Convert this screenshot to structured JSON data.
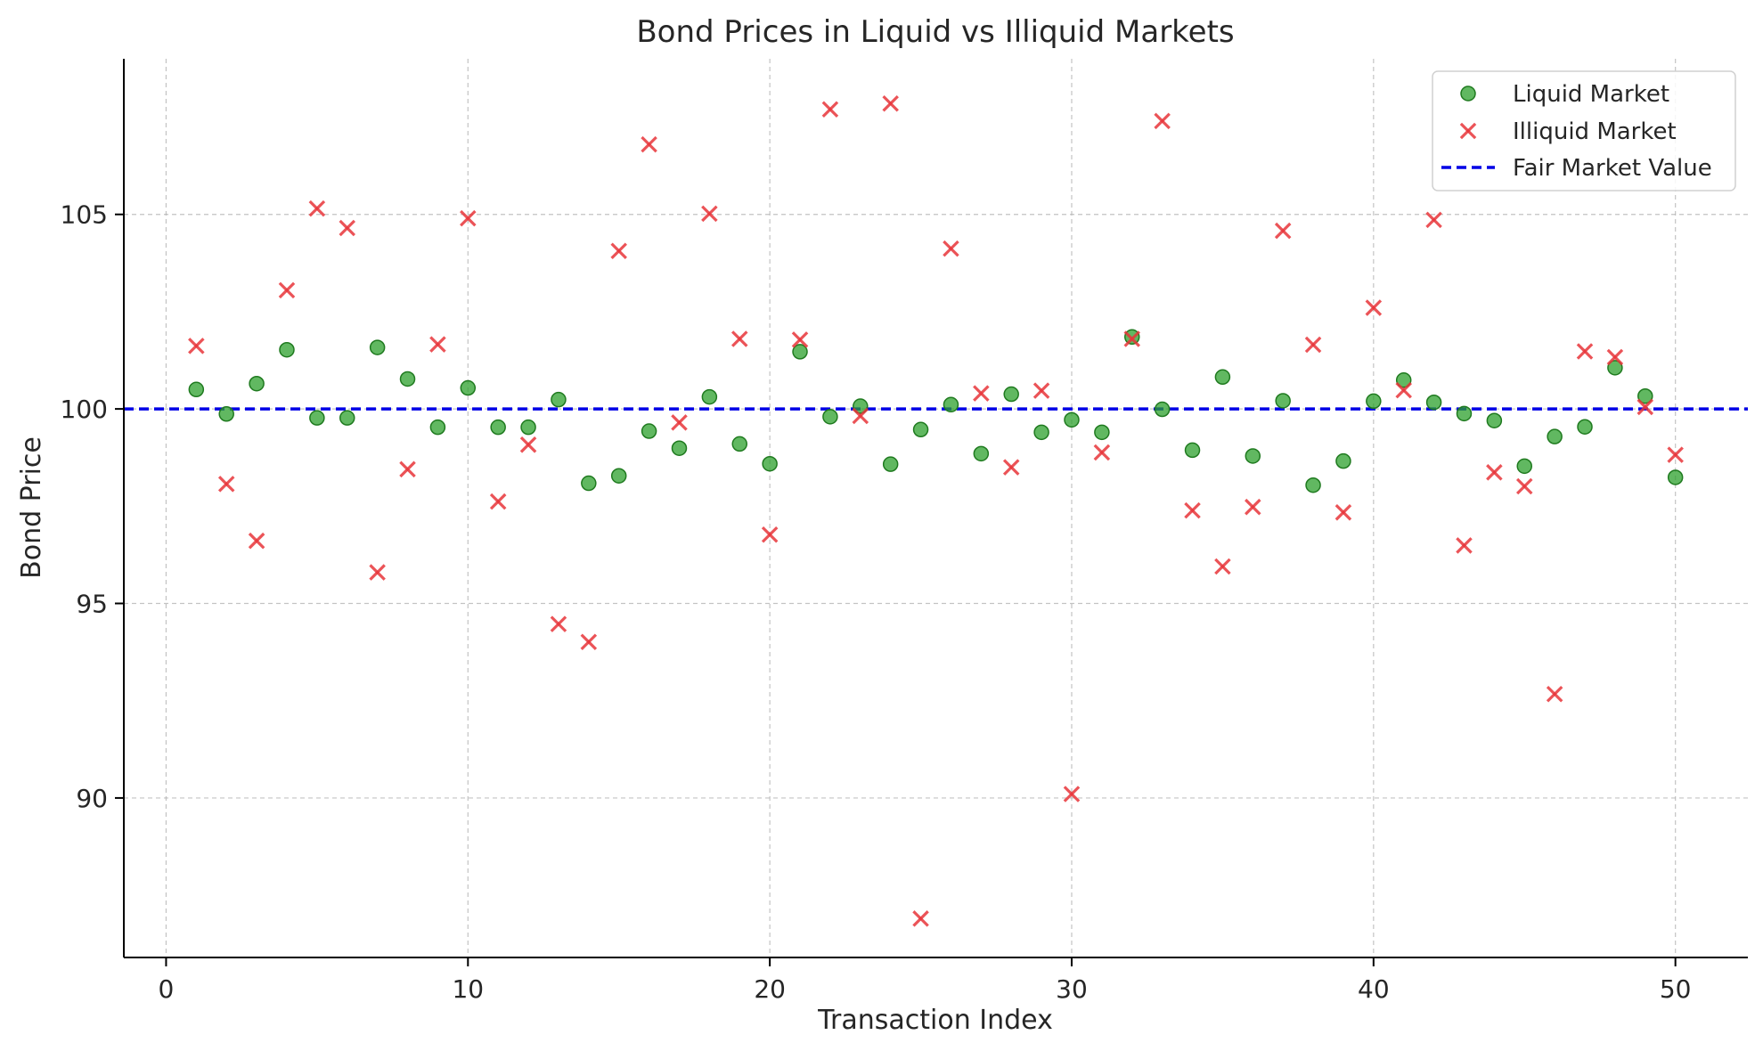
{
  "chart_data": {
    "type": "scatter",
    "title": "Bond Prices in Liquid vs Illiquid Markets",
    "xlabel": "Transaction Index",
    "ylabel": "Bond Price",
    "xlim": [
      -1.4,
      52.4
    ],
    "ylim": [
      85.9,
      109.0
    ],
    "xticks": [
      0,
      10,
      20,
      30,
      40,
      50
    ],
    "yticks": [
      90,
      95,
      100,
      105
    ],
    "grid": true,
    "legend_position": "top-right",
    "series": [
      {
        "name": "Liquid Market",
        "marker": "circle",
        "color": "#2ca02c",
        "x": [
          1,
          2,
          3,
          4,
          5,
          6,
          7,
          8,
          9,
          10,
          11,
          12,
          13,
          14,
          15,
          16,
          17,
          18,
          19,
          20,
          21,
          22,
          23,
          24,
          25,
          26,
          27,
          28,
          29,
          30,
          31,
          32,
          33,
          34,
          35,
          36,
          37,
          38,
          39,
          40,
          41,
          42,
          43,
          44,
          45,
          46,
          47,
          48,
          49,
          50
        ],
        "y": [
          100.5,
          99.87,
          100.65,
          101.52,
          99.77,
          99.77,
          101.58,
          100.77,
          99.53,
          100.54,
          99.53,
          99.53,
          100.24,
          98.09,
          98.28,
          99.43,
          98.99,
          100.31,
          99.1,
          98.59,
          101.47,
          99.8,
          100.07,
          98.58,
          99.47,
          100.11,
          98.85,
          100.38,
          99.4,
          99.72,
          99.4,
          101.85,
          99.99,
          98.94,
          100.82,
          98.79,
          100.21,
          98.04,
          98.66,
          100.2,
          100.74,
          100.17,
          99.88,
          99.7,
          98.53,
          99.29,
          99.54,
          101.06,
          100.33,
          98.24
        ]
      },
      {
        "name": "Illiquid Market",
        "marker": "x",
        "color": "#e8353a",
        "x": [
          1,
          2,
          3,
          4,
          5,
          6,
          7,
          8,
          9,
          10,
          11,
          12,
          13,
          14,
          15,
          16,
          17,
          18,
          19,
          20,
          21,
          22,
          23,
          24,
          25,
          26,
          27,
          28,
          29,
          30,
          31,
          32,
          33,
          34,
          35,
          36,
          37,
          38,
          39,
          40,
          41,
          42,
          43,
          44,
          45,
          46,
          47,
          48,
          49,
          50
        ],
        "y": [
          101.62,
          98.07,
          96.61,
          103.05,
          105.15,
          104.65,
          95.8,
          98.45,
          101.66,
          104.9,
          97.62,
          99.08,
          94.47,
          94.01,
          104.06,
          106.8,
          99.65,
          105.02,
          101.8,
          96.77,
          101.78,
          107.7,
          99.82,
          107.85,
          86.9,
          104.12,
          100.4,
          98.5,
          100.47,
          90.1,
          98.88,
          101.8,
          107.4,
          97.39,
          95.95,
          97.48,
          104.58,
          101.65,
          97.34,
          102.6,
          100.48,
          104.86,
          96.49,
          98.37,
          98.01,
          92.67,
          101.48,
          101.33,
          100.05,
          98.82
        ]
      },
      {
        "name": "Fair Market Value",
        "type": "hline",
        "style": "dashed",
        "color": "#0000e6",
        "y": 100
      }
    ]
  }
}
